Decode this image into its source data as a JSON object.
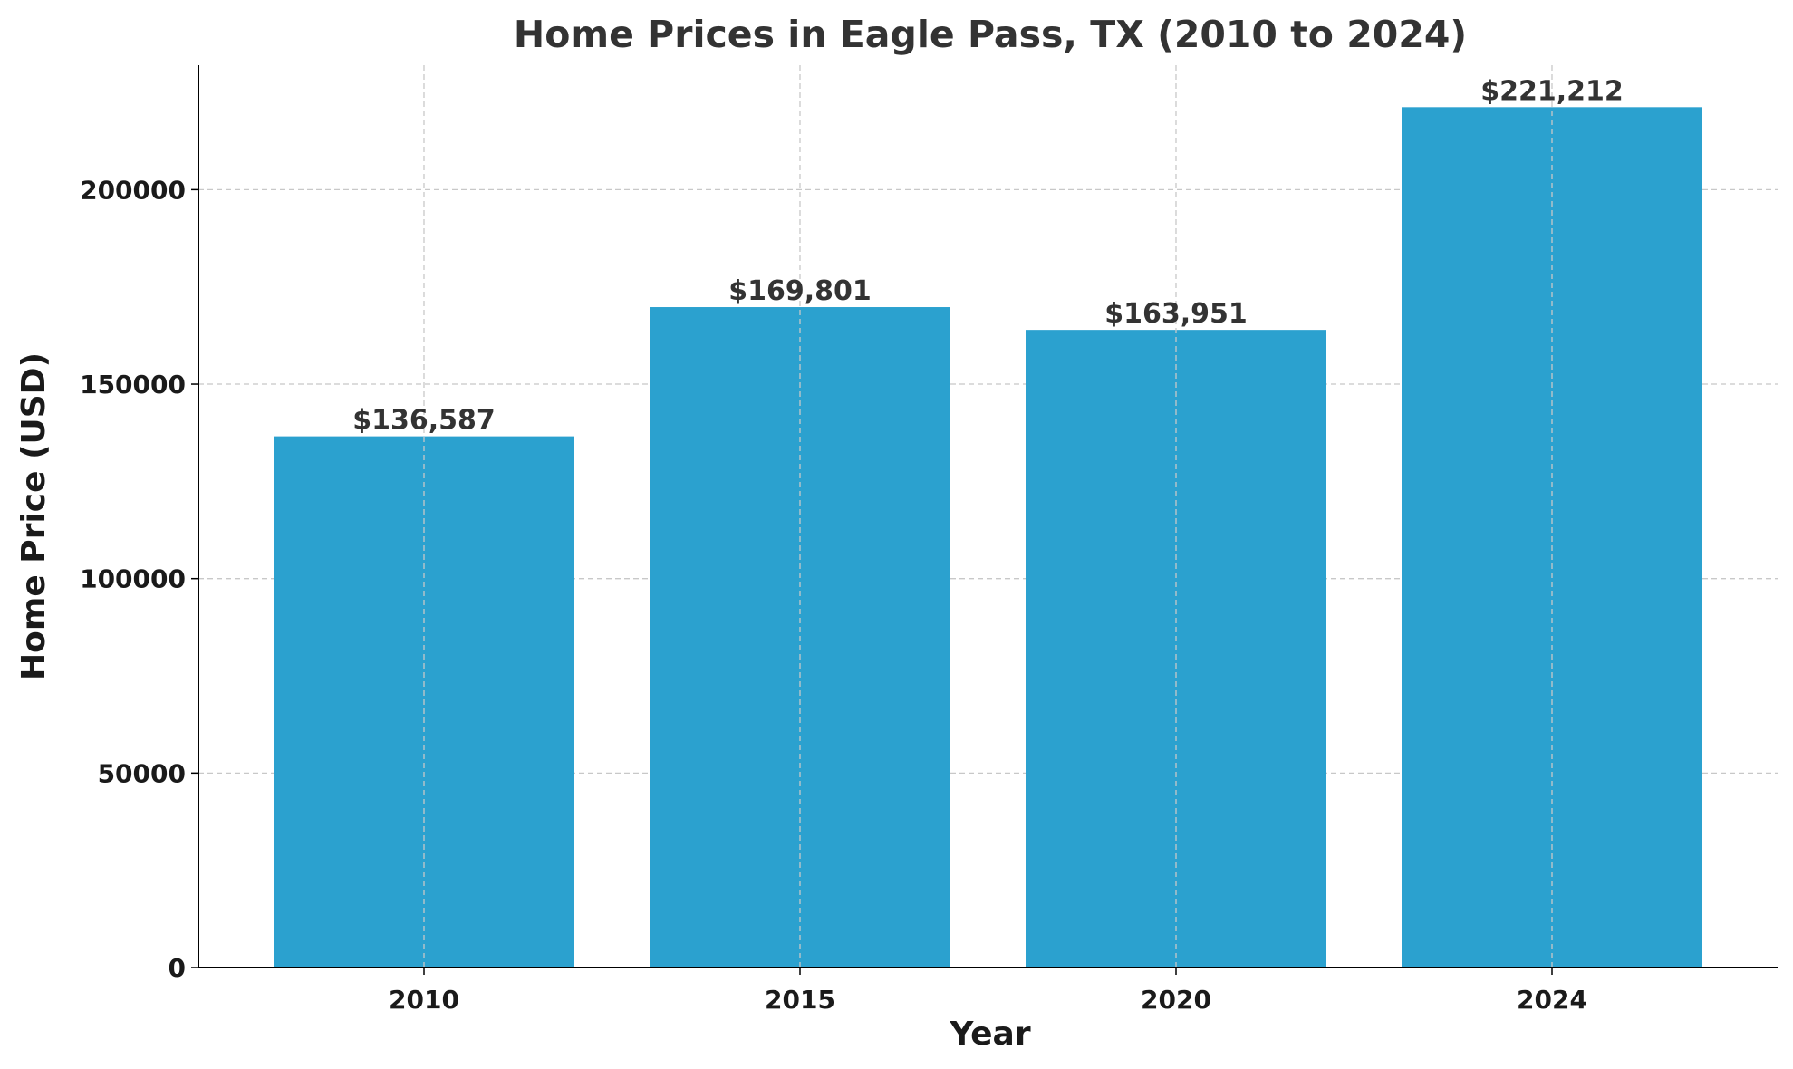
{
  "chart_data": {
    "type": "bar",
    "title": "Home Prices in Eagle Pass, TX (2010 to 2024)",
    "xlabel": "Year",
    "ylabel": "Home Price (USD)",
    "categories": [
      "2010",
      "2015",
      "2020",
      "2024"
    ],
    "values": [
      136587,
      169801,
      163951,
      221212
    ],
    "data_labels": [
      "$136,587",
      "$169,801",
      "$163,951",
      "$221,212"
    ],
    "ylim": [
      0,
      232000
    ],
    "yticks": [
      0,
      50000,
      100000,
      150000,
      200000
    ],
    "ytick_labels": [
      "0",
      "50000",
      "100000",
      "150000",
      "200000"
    ],
    "grid": true,
    "grid_style": "dashed",
    "legend": "none",
    "colors": {
      "bar": "#2ba1cf",
      "grid": "#c8c8c8",
      "axis": "#000000",
      "text": "#1a1a1a",
      "title": "#333333"
    }
  }
}
